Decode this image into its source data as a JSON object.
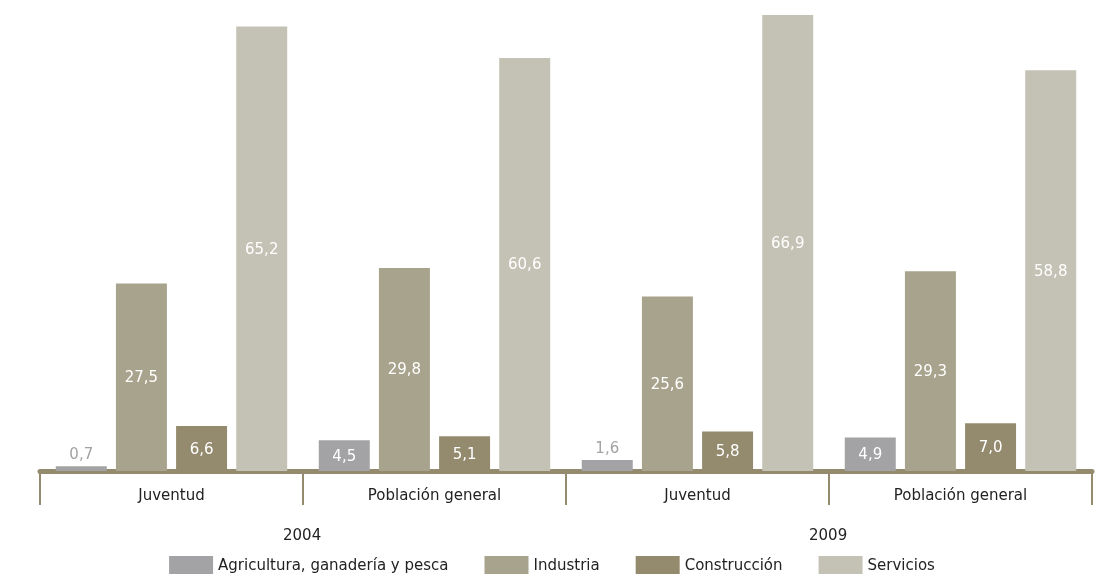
{
  "chart_data": {
    "type": "bar",
    "categories": [
      "Juventud",
      "Población general",
      "Juventud",
      "Población general"
    ],
    "series": [
      {
        "name": "Agricultura, ganadería y pesca",
        "color": "#a3a3a6",
        "values": [
          0.7,
          4.5,
          1.6,
          4.9
        ],
        "value_labels": [
          "0,7",
          "4,5",
          "1,6",
          "4,9"
        ]
      },
      {
        "name": "Industria",
        "color": "#a8a38c",
        "values": [
          27.5,
          29.8,
          25.6,
          29.3
        ],
        "value_labels": [
          "27,5",
          "29,8",
          "25,6",
          "29,3"
        ]
      },
      {
        "name": "Construcción",
        "color": "#948b6f",
        "values": [
          6.6,
          5.1,
          5.8,
          7.0
        ],
        "value_labels": [
          "6,6",
          "5,1",
          "5,8",
          "7,0"
        ]
      },
      {
        "name": "Servicios",
        "color": "#c4c2b5",
        "values": [
          65.2,
          60.6,
          66.9,
          58.8
        ],
        "value_labels": [
          "65,2",
          "60,6",
          "66,9",
          "58,8"
        ]
      }
    ],
    "annotations": [
      "2004",
      "2009"
    ],
    "tick_labels": "x",
    "legend": "bottom"
  }
}
